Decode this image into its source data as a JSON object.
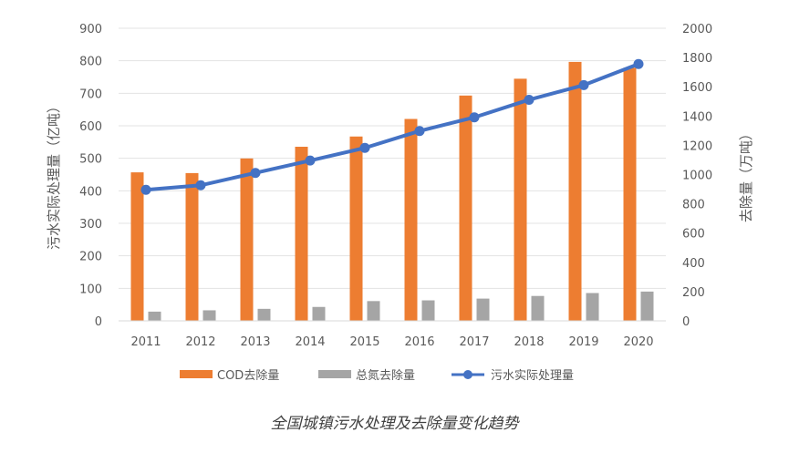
{
  "caption": "全国城镇污水处理及去除量变化趋势",
  "chart_data": {
    "type": "bar",
    "categories": [
      "2011",
      "2012",
      "2013",
      "2014",
      "2015",
      "2016",
      "2017",
      "2018",
      "2019",
      "2020"
    ],
    "series": [
      {
        "name": "COD去除量",
        "type": "bar",
        "axis": "right",
        "color": "#ED7D31",
        "values": [
          1015,
          1010,
          1110,
          1190,
          1260,
          1380,
          1540,
          1655,
          1770,
          1730
        ]
      },
      {
        "name": "总氮去除量",
        "type": "bar",
        "axis": "right",
        "color": "#A5A5A5",
        "values": [
          63,
          72,
          82,
          95,
          135,
          140,
          152,
          170,
          190,
          200
        ]
      },
      {
        "name": "污水实际处理量",
        "type": "line",
        "axis": "left",
        "color": "#4472C4",
        "values": [
          403,
          417,
          455,
          493,
          532,
          584,
          626,
          680,
          725,
          790
        ]
      }
    ],
    "ylabel_left": "污水实际处理量（亿吨）",
    "ylabel_right": "去除量（万吨）",
    "ylim_left": [
      0,
      900
    ],
    "ylim_right": [
      0,
      2000
    ],
    "yticks_left": [
      "0",
      "100",
      "200",
      "300",
      "400",
      "500",
      "600",
      "700",
      "800",
      "900"
    ],
    "yticks_right": [
      "0",
      "200",
      "400",
      "600",
      "800",
      "1000",
      "1200",
      "1400",
      "1600",
      "1800",
      "2000"
    ],
    "grid": true,
    "legend": "bottom"
  }
}
